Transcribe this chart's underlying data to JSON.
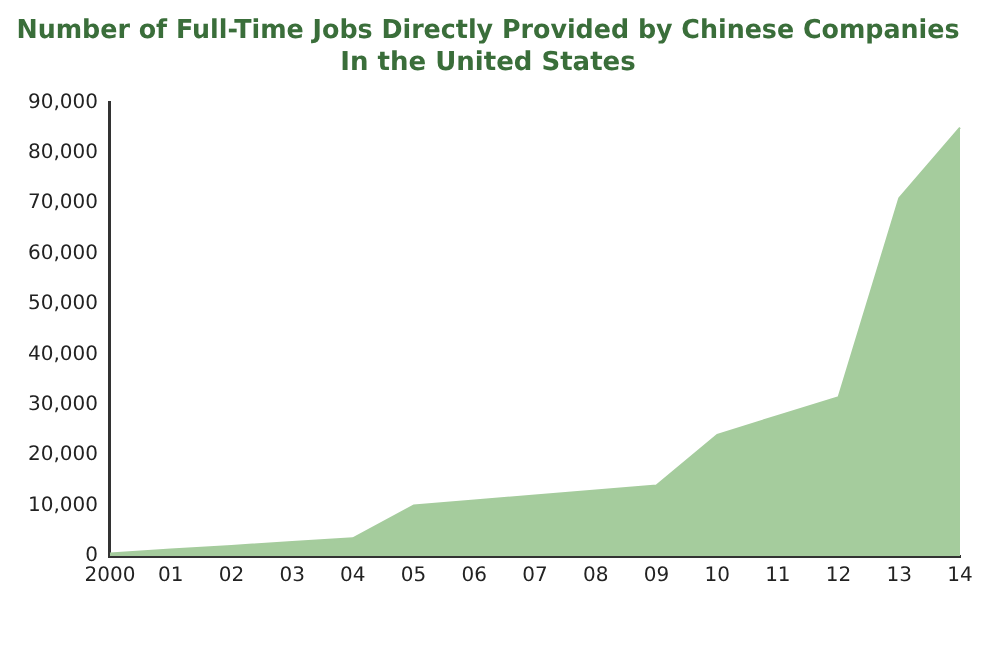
{
  "chart_data": {
    "type": "area",
    "title": "Number of Full-Time Jobs Directly Provided by Chinese Companies\nIn the United States",
    "categories": [
      "2000",
      "01",
      "02",
      "03",
      "04",
      "05",
      "06",
      "07",
      "08",
      "09",
      "10",
      "11",
      "12",
      "13",
      "14"
    ],
    "values": [
      500,
      1300,
      2000,
      2800,
      3500,
      10000,
      11000,
      12000,
      13000,
      14000,
      24000,
      27800,
      31500,
      71000,
      85000
    ],
    "color": "#a5cc9d",
    "ylim": [
      0,
      90000
    ],
    "yticks": [
      {
        "value": 0,
        "label": "0"
      },
      {
        "value": 10000,
        "label": "10,000"
      },
      {
        "value": 20000,
        "label": "20,000"
      },
      {
        "value": 30000,
        "label": "30,000"
      },
      {
        "value": 40000,
        "label": "40,000"
      },
      {
        "value": 50000,
        "label": "50,000"
      },
      {
        "value": 60000,
        "label": "60,000"
      },
      {
        "value": 70000,
        "label": "70,000"
      },
      {
        "value": 80000,
        "label": "80,000"
      },
      {
        "value": 90000,
        "label": "90,000"
      }
    ],
    "grid": false,
    "legend": false
  }
}
